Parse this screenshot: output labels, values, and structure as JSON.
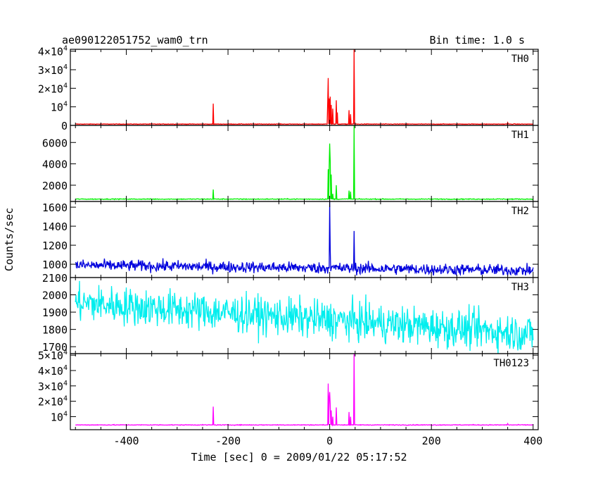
{
  "chart_data": {
    "type": "line",
    "title": "ae090122051752_wam0_trn",
    "bin_time": "Bin time: 1.0 s",
    "xlabel": "Time [sec] 0 = 2009/01/22 05:17:52",
    "ylabel": "Counts/sec",
    "x_range": [
      -510,
      410
    ],
    "x_ticks": [
      -400,
      -200,
      0,
      200,
      400
    ],
    "panels": [
      {
        "name": "TH0",
        "color": "#ff0000",
        "ylim": [
          0,
          41000
        ],
        "yticks": [
          {
            "value": 0,
            "label": "0"
          },
          {
            "value": 10000,
            "mant": "10",
            "exp": "4"
          },
          {
            "value": 20000,
            "mant": "2×10",
            "exp": "4"
          },
          {
            "value": 30000,
            "mant": "3×10",
            "exp": "4"
          },
          {
            "value": 40000,
            "mant": "4×10",
            "exp": "4"
          }
        ],
        "baseline": 700,
        "noise": 80,
        "features": [
          [
            -229,
            11700
          ],
          [
            -4,
            13000
          ],
          [
            -3,
            25500
          ],
          [
            -1,
            14500
          ],
          [
            1,
            15500
          ],
          [
            3,
            11000
          ],
          [
            6,
            9000
          ],
          [
            13,
            13500
          ],
          [
            15,
            7000
          ],
          [
            38,
            8200
          ],
          [
            41,
            6000
          ],
          [
            48,
            41000
          ],
          [
            350,
            1500
          ]
        ]
      },
      {
        "name": "TH1",
        "color": "#00ee00",
        "ylim": [
          480,
          7600
        ],
        "yticks": [
          {
            "value": 2000,
            "label": "2000"
          },
          {
            "value": 4000,
            "label": "4000"
          },
          {
            "value": 6000,
            "label": "6000"
          }
        ],
        "baseline": 700,
        "noise": 20,
        "features": [
          [
            -229,
            1600
          ],
          [
            -3,
            3500
          ],
          [
            -1,
            3800
          ],
          [
            0,
            5900
          ],
          [
            1,
            4200
          ],
          [
            3,
            3000
          ],
          [
            6,
            1200
          ],
          [
            13,
            2000
          ],
          [
            38,
            1500
          ],
          [
            41,
            1400
          ],
          [
            48,
            7600
          ]
        ]
      },
      {
        "name": "TH2",
        "color": "#0000dd",
        "ylim": [
          860,
          1660
        ],
        "yticks": [
          {
            "value": 1000,
            "label": "1000"
          },
          {
            "value": 1200,
            "label": "1200"
          },
          {
            "value": 1400,
            "label": "1400"
          },
          {
            "value": 1600,
            "label": "1600"
          }
        ],
        "baseline_start": 990,
        "baseline_end": 935,
        "noise": 30,
        "features": [
          [
            0,
            1660
          ],
          [
            1,
            1150
          ],
          [
            48,
            1350
          ]
        ]
      },
      {
        "name": "TH3",
        "color": "#00eeee",
        "ylim": [
          1660,
          2100
        ],
        "yticks": [
          {
            "value": 1700,
            "label": "1700"
          },
          {
            "value": 1800,
            "label": "1800"
          },
          {
            "value": 1900,
            "label": "1900"
          },
          {
            "value": 2000,
            "label": "2000"
          },
          {
            "value": 2100,
            "label": "2100"
          }
        ],
        "baseline_start": 1955,
        "baseline_end": 1775,
        "noise": 55,
        "features": []
      },
      {
        "name": "TH0123",
        "color": "#ff00ff",
        "ylim": [
          1500,
          51000
        ],
        "yticks": [
          {
            "value": 10000,
            "mant": "10",
            "exp": "4"
          },
          {
            "value": 20000,
            "mant": "2×10",
            "exp": "4"
          },
          {
            "value": 30000,
            "mant": "3×10",
            "exp": "4"
          },
          {
            "value": 40000,
            "mant": "4×10",
            "exp": "4"
          },
          {
            "value": 50000,
            "mant": "5×10",
            "exp": "4"
          }
        ],
        "baseline": 4600,
        "noise": 120,
        "features": [
          [
            -229,
            16500
          ],
          [
            -3,
            31500
          ],
          [
            -1,
            22000
          ],
          [
            0,
            26000
          ],
          [
            1,
            18000
          ],
          [
            3,
            14000
          ],
          [
            6,
            10000
          ],
          [
            13,
            16000
          ],
          [
            38,
            13000
          ],
          [
            41,
            10000
          ],
          [
            48,
            51000
          ],
          [
            350,
            5500
          ]
        ]
      }
    ]
  }
}
